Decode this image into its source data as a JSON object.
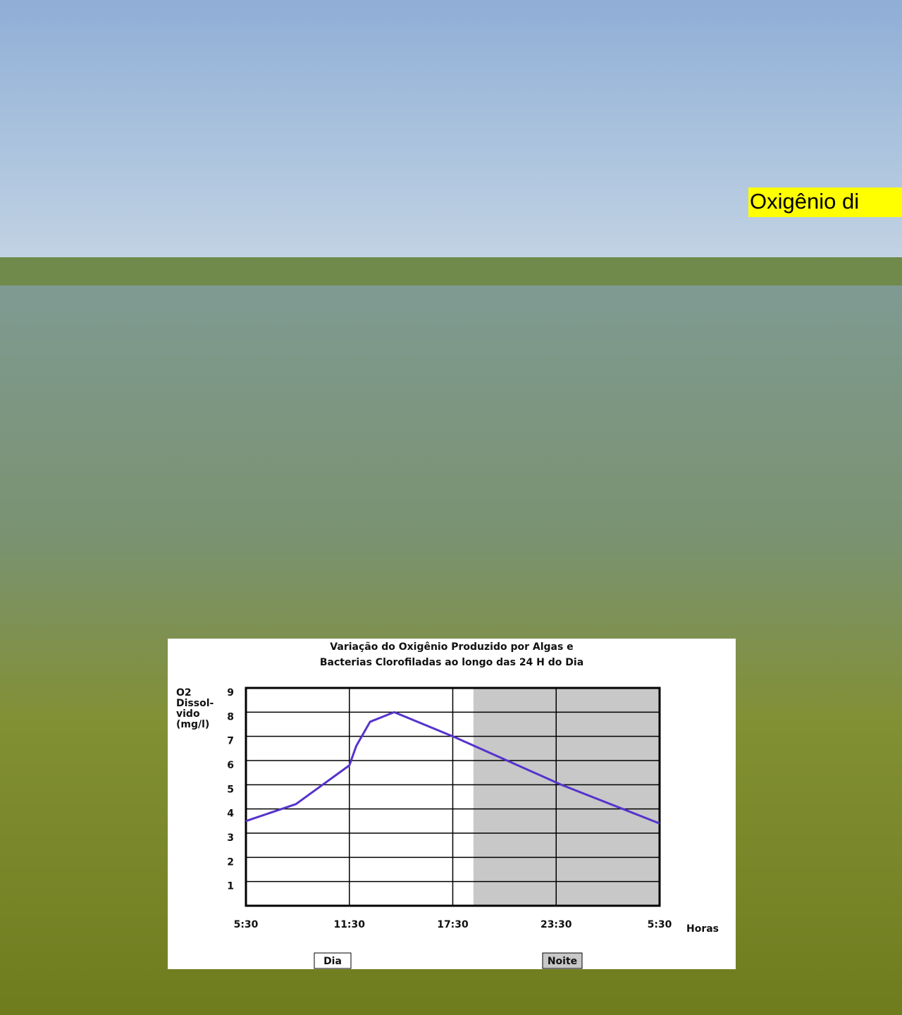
{
  "caption": "Oxigênio di",
  "chart_data": {
    "type": "line",
    "title": [
      "Variação do Oxigênio Produzido por Algas e",
      "Bacterias Clorofiladas ao longo das 24 H do Dia"
    ],
    "y_label": [
      "O2",
      "Dissol-",
      "vido",
      "(mg/l)"
    ],
    "x_label": "Horas",
    "x": [
      0,
      2.9,
      6,
      6.4,
      7.2,
      8.6,
      12,
      18.3,
      24
    ],
    "values": [
      3.5,
      4.2,
      5.8,
      6.6,
      7.6,
      8.0,
      7.0,
      5.0,
      3.4
    ],
    "color": "#5533cc",
    "xlim": [
      0,
      24
    ],
    "xticks": [
      {
        "value": 0,
        "label": "5:30"
      },
      {
        "value": 6,
        "label": "11:30"
      },
      {
        "value": 12,
        "label": "17:30"
      },
      {
        "value": 18,
        "label": "23:30"
      },
      {
        "value": 24,
        "label": "5:30"
      }
    ],
    "ylim": [
      0,
      9
    ],
    "yticks": [
      1,
      2,
      3,
      4,
      5,
      6,
      7,
      8,
      9
    ],
    "grid": true,
    "night_span": [
      13.2,
      24
    ],
    "legend": [
      "Dia",
      "Noite"
    ]
  }
}
